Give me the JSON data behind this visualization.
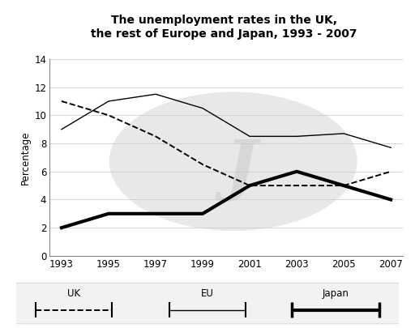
{
  "title": "The unemployment rates in the UK,\nthe rest of Europe and Japan, 1993 - 2007",
  "years": [
    1993,
    1995,
    1997,
    1999,
    2001,
    2003,
    2005,
    2007
  ],
  "uk": [
    11.0,
    10.0,
    8.5,
    6.5,
    5.0,
    5.0,
    5.0,
    6.0
  ],
  "eu": [
    9.0,
    11.0,
    11.5,
    10.5,
    8.5,
    8.5,
    8.7,
    7.7
  ],
  "japan": [
    2.0,
    3.0,
    3.0,
    3.0,
    5.0,
    6.0,
    5.0,
    4.0
  ],
  "ylabel": "Percentage",
  "ylim": [
    0,
    14
  ],
  "yticks": [
    0,
    2,
    4,
    6,
    8,
    10,
    12,
    14
  ],
  "background_color": "#ffffff",
  "grid_color": "#cccccc",
  "legend_bg": "#f0f0f0"
}
